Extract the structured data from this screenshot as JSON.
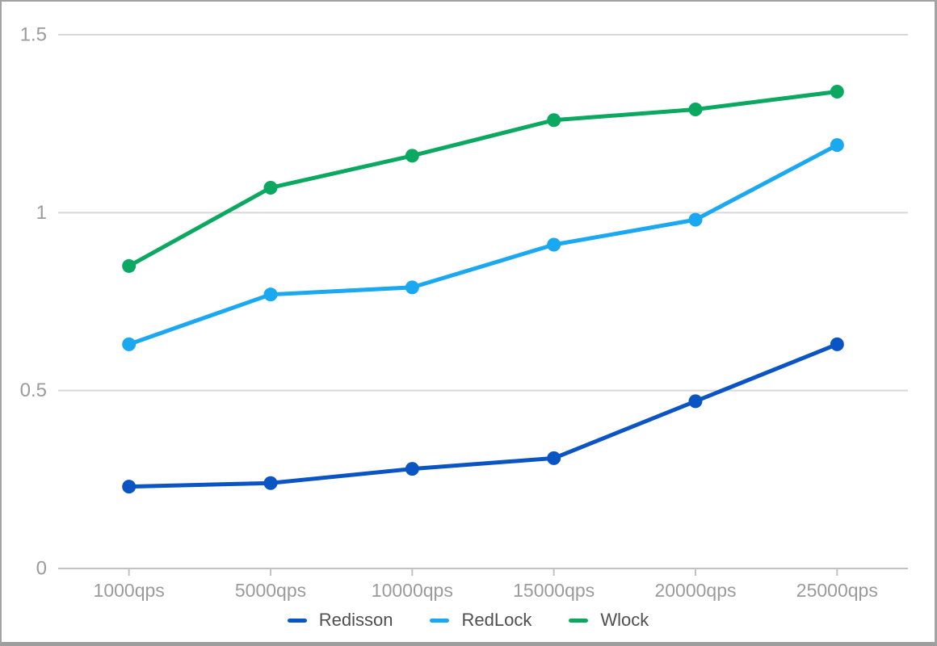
{
  "chart_data": {
    "type": "line",
    "title": "",
    "xlabel": "",
    "ylabel": "",
    "categories": [
      "1000qps",
      "5000qps",
      "10000qps",
      "15000qps",
      "20000qps",
      "25000qps"
    ],
    "series": [
      {
        "name": "Redisson",
        "color": "#0b54c4",
        "values": [
          0.23,
          0.24,
          0.28,
          0.31,
          0.47,
          0.63
        ]
      },
      {
        "name": "RedLock",
        "color": "#1aa8f0",
        "values": [
          0.63,
          0.77,
          0.79,
          0.91,
          0.98,
          1.19
        ]
      },
      {
        "name": "Wlock",
        "color": "#0aa860",
        "values": [
          0.85,
          1.07,
          1.16,
          1.26,
          1.29,
          1.34
        ]
      }
    ],
    "ylim": [
      0,
      1.5
    ],
    "yticks": [
      0,
      0.5,
      1,
      1.5
    ],
    "ytick_labels": [
      "0",
      "0.5",
      "1",
      "1.5"
    ],
    "grid": true,
    "legend_position": "bottom",
    "marker": "circle"
  },
  "colors": {
    "grid": "#d8d8d8",
    "axis": "#c2c2c2",
    "axis_label": "#9b9b9b",
    "legend_text": "#4f4f4f",
    "frame_border": "#a3a3a3"
  }
}
